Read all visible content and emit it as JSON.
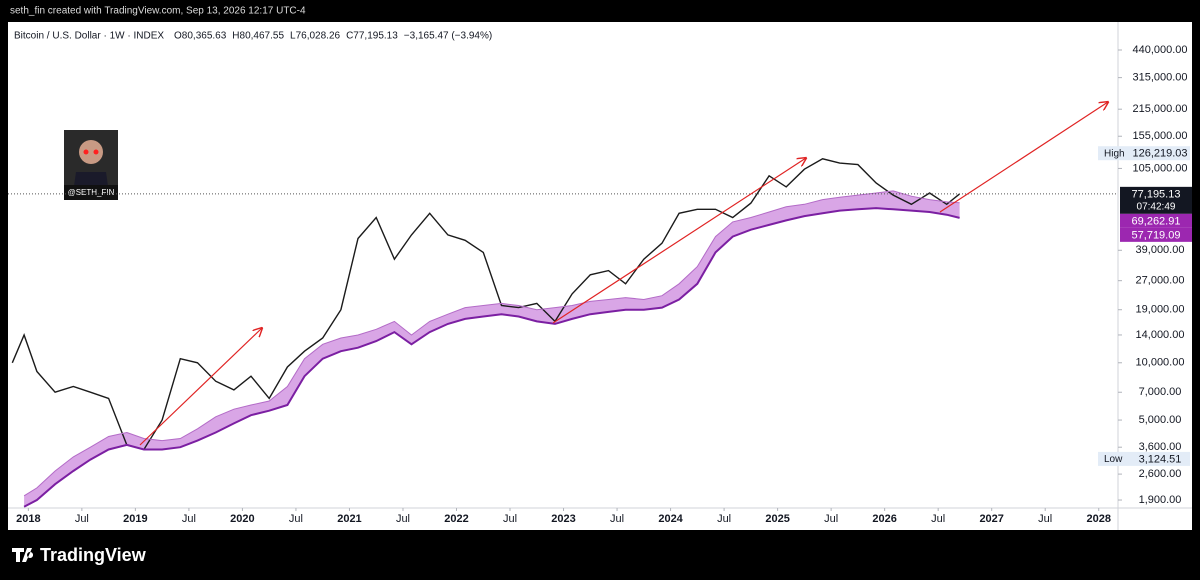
{
  "credit": "seth_fin created with TradingView.com, Sep 13, 2026 12:17 UTC-4",
  "brand": "TradingView",
  "avatar_label": "@SETH_FIN",
  "chart_data": {
    "type": "line",
    "title": "Bitcoin / U.S. Dollar · 1W · INDEX",
    "ohlc": [
      "O80,365.63",
      "H80,467.55",
      "L76,028.26",
      "C77,195.13",
      "−3,165.47 (−3.94%)"
    ],
    "log_scale": true,
    "grid": false,
    "x": [
      2017.85,
      2017.96,
      2018.08,
      2018.25,
      2018.42,
      2018.58,
      2018.75,
      2018.92,
      2019.08,
      2019.25,
      2019.42,
      2019.58,
      2019.75,
      2019.92,
      2020.08,
      2020.25,
      2020.42,
      2020.58,
      2020.75,
      2020.92,
      2021.08,
      2021.25,
      2021.42,
      2021.58,
      2021.75,
      2021.92,
      2022.08,
      2022.25,
      2022.42,
      2022.58,
      2022.75,
      2022.92,
      2023.08,
      2023.25,
      2023.42,
      2023.58,
      2023.75,
      2023.92,
      2024.08,
      2024.25,
      2024.42,
      2024.58,
      2024.75,
      2024.92,
      2025.08,
      2025.25,
      2025.42,
      2025.58,
      2025.75,
      2025.92,
      2026.08,
      2026.25,
      2026.42,
      2026.58,
      2026.7
    ],
    "series": [
      {
        "name": "Close",
        "color": "#1b1b1b",
        "width": 1.4,
        "end_label": "77,195.13",
        "values": [
          10000,
          14000,
          9000,
          7000,
          7500,
          7000,
          6500,
          3700,
          3500,
          5000,
          10500,
          10000,
          8000,
          7200,
          8500,
          6500,
          9500,
          11500,
          13500,
          19000,
          45000,
          58000,
          35000,
          47000,
          61000,
          47000,
          44000,
          38000,
          20000,
          19500,
          20500,
          16500,
          23000,
          29000,
          30500,
          26000,
          35000,
          42500,
          61000,
          64000,
          64000,
          58000,
          69000,
          96000,
          84000,
          104000,
          118000,
          112000,
          110000,
          88000,
          76000,
          68000,
          78000,
          68000,
          77195.13
        ]
      },
      {
        "name": "Band upper",
        "color": "#b36bc7",
        "width": 1,
        "end_label": "69,262.91",
        "values": [
          null,
          2000,
          2200,
          2700,
          3200,
          3600,
          4100,
          4300,
          4000,
          3900,
          4000,
          4500,
          5200,
          5700,
          6000,
          6300,
          7500,
          10500,
          12500,
          13500,
          14000,
          15000,
          16500,
          14000,
          16500,
          18000,
          19500,
          20000,
          20500,
          20000,
          19000,
          19500,
          20000,
          21000,
          21500,
          22000,
          21500,
          22500,
          26000,
          32000,
          46000,
          55000,
          58000,
          62000,
          66000,
          68000,
          72000,
          74000,
          76000,
          78000,
          80000,
          75000,
          72000,
          70000,
          69262.91
        ]
      },
      {
        "name": "Band lower",
        "color": "#7b1fa2",
        "width": 2,
        "end_label": "57,719.09",
        "values": [
          null,
          1750,
          1900,
          2300,
          2700,
          3100,
          3500,
          3700,
          3500,
          3500,
          3600,
          3900,
          4300,
          4800,
          5300,
          5600,
          6000,
          8500,
          10500,
          11500,
          12000,
          13000,
          14500,
          12500,
          14500,
          16000,
          17000,
          17500,
          18000,
          17500,
          16500,
          16000,
          17000,
          18000,
          18500,
          19000,
          19000,
          19500,
          21500,
          26000,
          38000,
          46000,
          50000,
          53000,
          56000,
          59000,
          61000,
          63000,
          64000,
          65000,
          64000,
          63000,
          62000,
          60000,
          57719.09
        ]
      }
    ],
    "band_fill": "#d9a6e6",
    "countdown": "07:42:49",
    "markers": [
      {
        "name": "High",
        "value": 126219.03,
        "value_label": "126,219.03"
      },
      {
        "name": "Low",
        "value": 3124.51,
        "value_label": "3,124.51"
      }
    ],
    "xlim": [
      2017.81,
      2028.18
    ],
    "xticks": [
      2018,
      {
        "value": 2018.5,
        "label": "Jul"
      },
      2019,
      {
        "value": 2019.5,
        "label": "Jul"
      },
      2020,
      {
        "value": 2020.5,
        "label": "Jul"
      },
      2021,
      {
        "value": 2021.5,
        "label": "Jul"
      },
      2022,
      {
        "value": 2022.5,
        "label": "Jul"
      },
      2023,
      {
        "value": 2023.5,
        "label": "Jul"
      },
      2024,
      {
        "value": 2024.5,
        "label": "Jul"
      },
      2025,
      {
        "value": 2025.5,
        "label": "Jul"
      },
      2026,
      {
        "value": 2026.5,
        "label": "Jul"
      },
      2027,
      {
        "value": 2027.5,
        "label": "Jul"
      },
      2028
    ],
    "ylim": [
      1684,
      560500
    ],
    "yticks": [
      {
        "value": 1900,
        "label": "1,900.00"
      },
      {
        "value": 2600,
        "label": "2,600.00"
      },
      {
        "value": 3600,
        "label": "3,600.00"
      },
      {
        "value": 5000,
        "label": "5,000.00"
      },
      {
        "value": 7000,
        "label": "7,000.00"
      },
      {
        "value": 10000,
        "label": "10,000.00"
      },
      {
        "value": 14000,
        "label": "14,000.00"
      },
      {
        "value": 19000,
        "label": "19,000.00"
      },
      {
        "value": 27000,
        "label": "27,000.00"
      },
      {
        "value": 39000,
        "label": "39,000.00"
      },
      {
        "value": 105000,
        "label": "105,000.00"
      },
      {
        "value": 155000,
        "label": "155,000.00"
      },
      {
        "value": 215000,
        "label": "215,000.00"
      },
      {
        "value": 315000,
        "label": "315,000.00"
      },
      {
        "value": 440000,
        "label": "440,000.00"
      }
    ]
  }
}
